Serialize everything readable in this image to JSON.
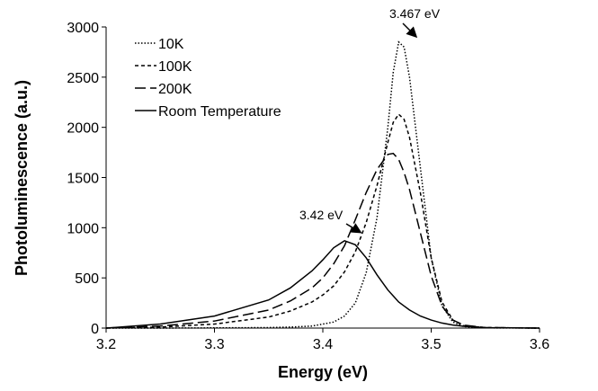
{
  "chart_data": {
    "type": "line",
    "x_label": "Energy (eV)",
    "y_label": "Photoluminescence (a.u.)",
    "xlim": [
      3.2,
      3.6
    ],
    "xticks": [
      3.2,
      3.3,
      3.4,
      3.5,
      3.6
    ],
    "ylim": [
      0,
      3000
    ],
    "yticks": [
      0,
      500,
      1000,
      1500,
      2000,
      2500,
      3000
    ],
    "grid": false,
    "legend": "upper-left",
    "x": [
      3.2,
      3.25,
      3.3,
      3.35,
      3.37,
      3.39,
      3.4,
      3.41,
      3.42,
      3.43,
      3.44,
      3.45,
      3.46,
      3.465,
      3.47,
      3.475,
      3.48,
      3.49,
      3.5,
      3.51,
      3.52,
      3.53,
      3.55,
      3.6
    ],
    "series": [
      {
        "name": "10K",
        "color": "#000000",
        "dash": "dotted",
        "values": [
          0,
          0,
          2,
          5,
          10,
          20,
          40,
          60,
          120,
          250,
          550,
          1100,
          2000,
          2550,
          2850,
          2800,
          2500,
          1600,
          700,
          220,
          60,
          15,
          2,
          0
        ]
      },
      {
        "name": "100K",
        "color": "#000000",
        "dash": "short-dash",
        "values": [
          0,
          10,
          40,
          110,
          170,
          260,
          330,
          420,
          560,
          760,
          1050,
          1420,
          1850,
          2050,
          2130,
          2080,
          1900,
          1350,
          700,
          260,
          80,
          25,
          5,
          0
        ]
      },
      {
        "name": "200K",
        "color": "#000000",
        "dash": "long-dash",
        "values": [
          0,
          20,
          70,
          180,
          270,
          400,
          500,
          640,
          820,
          1080,
          1350,
          1580,
          1730,
          1740,
          1680,
          1550,
          1380,
          950,
          520,
          220,
          80,
          30,
          5,
          0
        ]
      },
      {
        "name": "Room Temperature",
        "color": "#000000",
        "dash": "solid",
        "values": [
          0,
          40,
          120,
          280,
          400,
          570,
          680,
          800,
          870,
          830,
          700,
          530,
          380,
          320,
          260,
          220,
          180,
          120,
          80,
          50,
          30,
          18,
          5,
          0
        ]
      }
    ],
    "annotations": [
      "3.467 eV",
      "3.42 eV"
    ]
  }
}
